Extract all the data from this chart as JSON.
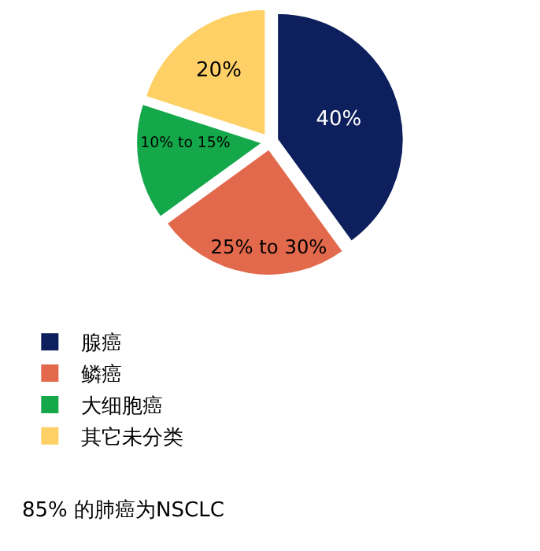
{
  "chart_data": {
    "type": "pie",
    "categories": [
      "腺癌",
      "鳞癌",
      "大细胞癌",
      "其它未分类"
    ],
    "values": [
      40,
      25,
      15,
      20
    ],
    "value_labels": [
      "40%",
      "25% to 30%",
      "10% to 15%",
      "20%"
    ],
    "colors": [
      "#0d1f5c",
      "#e2694b",
      "#14a84a",
      "#ffd065"
    ],
    "legend": "bottom",
    "annotations": [
      "85% 的肺癌为NSCLC"
    ]
  }
}
